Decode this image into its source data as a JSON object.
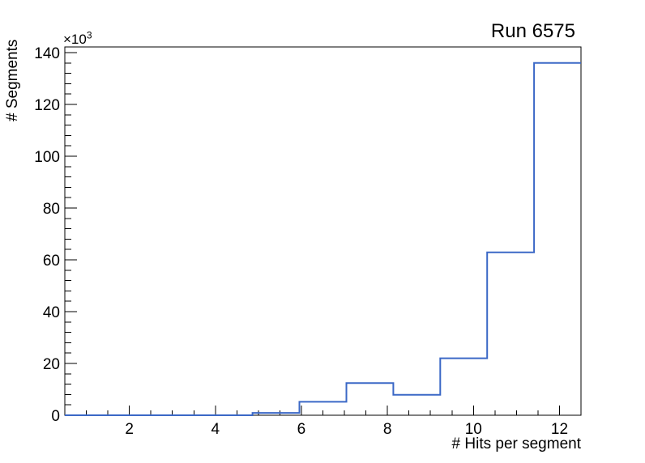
{
  "window": {
    "background_color": "#ffffff"
  },
  "chart_data": {
    "type": "histogram-step",
    "title": "Run 6575",
    "xlabel": "# Hits per segment",
    "ylabel": "# Segments",
    "y_axis_multiplier": {
      "base": "×10",
      "exponent": "3"
    },
    "xlim": [
      0.5,
      12.5
    ],
    "ylim": [
      0,
      142200
    ],
    "bin_edges": [
      0.5,
      1.5909,
      2.6818,
      3.7727,
      4.8636,
      5.9545,
      7.0455,
      8.1364,
      9.2273,
      10.3182,
      11.4091,
      12.5
    ],
    "counts": [
      0,
      0,
      0,
      0,
      900,
      5200,
      12400,
      7900,
      22000,
      62900,
      136000
    ],
    "x_ticks_major": [
      2,
      4,
      6,
      8,
      10,
      12
    ],
    "x_tick_labels": [
      "2",
      "4",
      "6",
      "8",
      "10",
      "12"
    ],
    "x_tick_minor_step": 0.5,
    "y_ticks_major": [
      0,
      20000,
      40000,
      60000,
      80000,
      100000,
      120000,
      140000
    ],
    "y_tick_labels": [
      "0",
      "20",
      "40",
      "60",
      "80",
      "100",
      "120",
      "140"
    ],
    "y_tick_minor_step": 4000,
    "grid": false,
    "legend": null,
    "line_color": "#3b68c6",
    "axis_color": "#000000",
    "text_color": "#000000"
  }
}
